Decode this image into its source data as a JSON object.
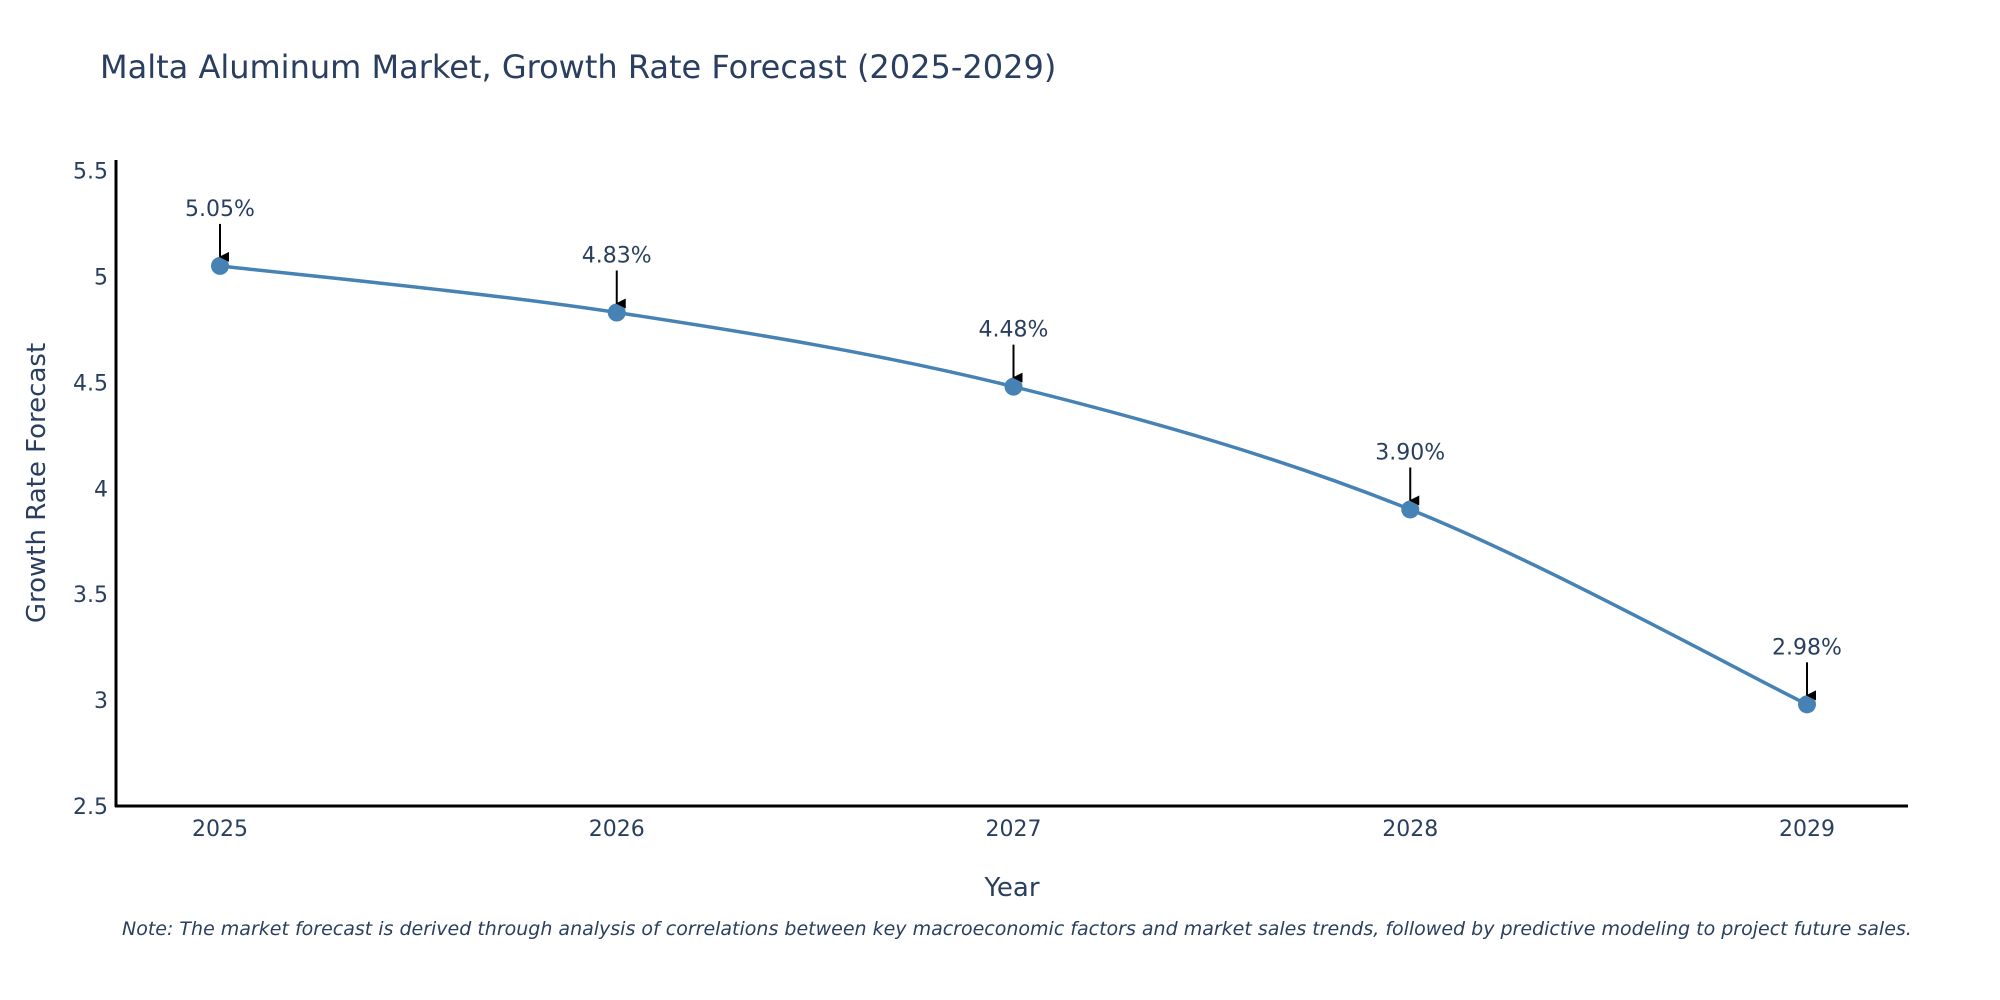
{
  "chart_data": {
    "type": "line",
    "title": "Malta Aluminum Market, Growth Rate Forecast (2025-2029)",
    "xlabel": "Year",
    "ylabel": "Growth Rate Forecast",
    "categories": [
      "2025",
      "2026",
      "2027",
      "2028",
      "2029"
    ],
    "values": [
      5.05,
      4.83,
      4.48,
      3.9,
      2.98
    ],
    "data_labels": [
      "5.05%",
      "4.83%",
      "4.48%",
      "3.90%",
      "2.98%"
    ],
    "ylim": [
      2.5,
      5.55
    ],
    "yticks": [
      2.5,
      3,
      3.5,
      4,
      4.5,
      5,
      5.5
    ],
    "ytick_labels": [
      "2.5",
      "3",
      "3.5",
      "4",
      "4.5",
      "5",
      "5.5"
    ],
    "grid": false,
    "line_shape": "spline",
    "series_color": "#4682b4",
    "axis_color": "#000000",
    "text_color": "#2a3f5f"
  },
  "note": "Note: The market forecast is derived through analysis of correlations between key macroeconomic factors and market sales trends, followed by predictive modeling to project future sales."
}
